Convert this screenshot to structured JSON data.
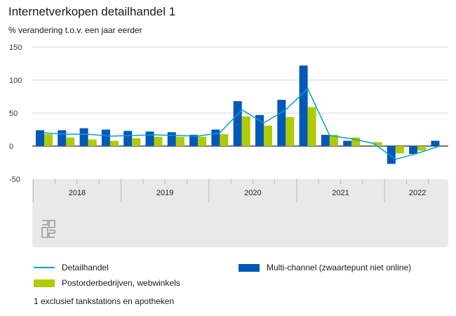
{
  "title": "Internetverkopen detailhandel 1",
  "subtitle": "% verandering t.o.v. een jaar eerder",
  "footnote": "1 exclusief tankstations en apotheken",
  "colors": {
    "multichannel": "#0058b8",
    "postorder": "#afcb05",
    "detailhandel": "#00a1cd",
    "panel": "#e9e9e9",
    "grid": "#d6d6d6"
  },
  "chart_data": {
    "type": "bar",
    "ylim": [
      -50,
      150
    ],
    "yticks": [
      "150",
      "100",
      "50",
      "0",
      "-50"
    ],
    "years": [
      "2018",
      "2019",
      "2020",
      "2021",
      "2022"
    ],
    "quarters": [
      "2018 Q1",
      "2018 Q2",
      "2018 Q3",
      "2018 Q4",
      "2019 Q1",
      "2019 Q2",
      "2019 Q3",
      "2019 Q4",
      "2020 Q1",
      "2020 Q2",
      "2020 Q3",
      "2020 Q4",
      "2021 Q1",
      "2021 Q2",
      "2021 Q3",
      "2021 Q4",
      "2022 Q1",
      "2022 Q2",
      "2022 Q3"
    ],
    "series": [
      {
        "name": "Multi-channel (zwaartepunt niet online)",
        "kind": "bar",
        "values": [
          24,
          24,
          27,
          25,
          23,
          22,
          21,
          17,
          25,
          68,
          47,
          70,
          122,
          17,
          8,
          null,
          -27,
          -12,
          8
        ]
      },
      {
        "name": "Postorderbedrijven, webwinkels",
        "kind": "bar",
        "values": [
          18,
          13,
          10,
          8,
          12,
          14,
          14,
          14,
          18,
          45,
          31,
          44,
          59,
          17,
          13,
          6,
          -11,
          -7,
          null
        ]
      },
      {
        "name": "Detailhandel",
        "kind": "line",
        "values": [
          20,
          18,
          18,
          15,
          16,
          17,
          16,
          15,
          20,
          55,
          35,
          55,
          87,
          16,
          11,
          4,
          -20,
          -11,
          0
        ]
      }
    ],
    "legend": [
      "Detailhandel",
      "Multi-channel (zwaartepunt niet online)",
      "Postorderbedrijven, webwinkels"
    ]
  }
}
